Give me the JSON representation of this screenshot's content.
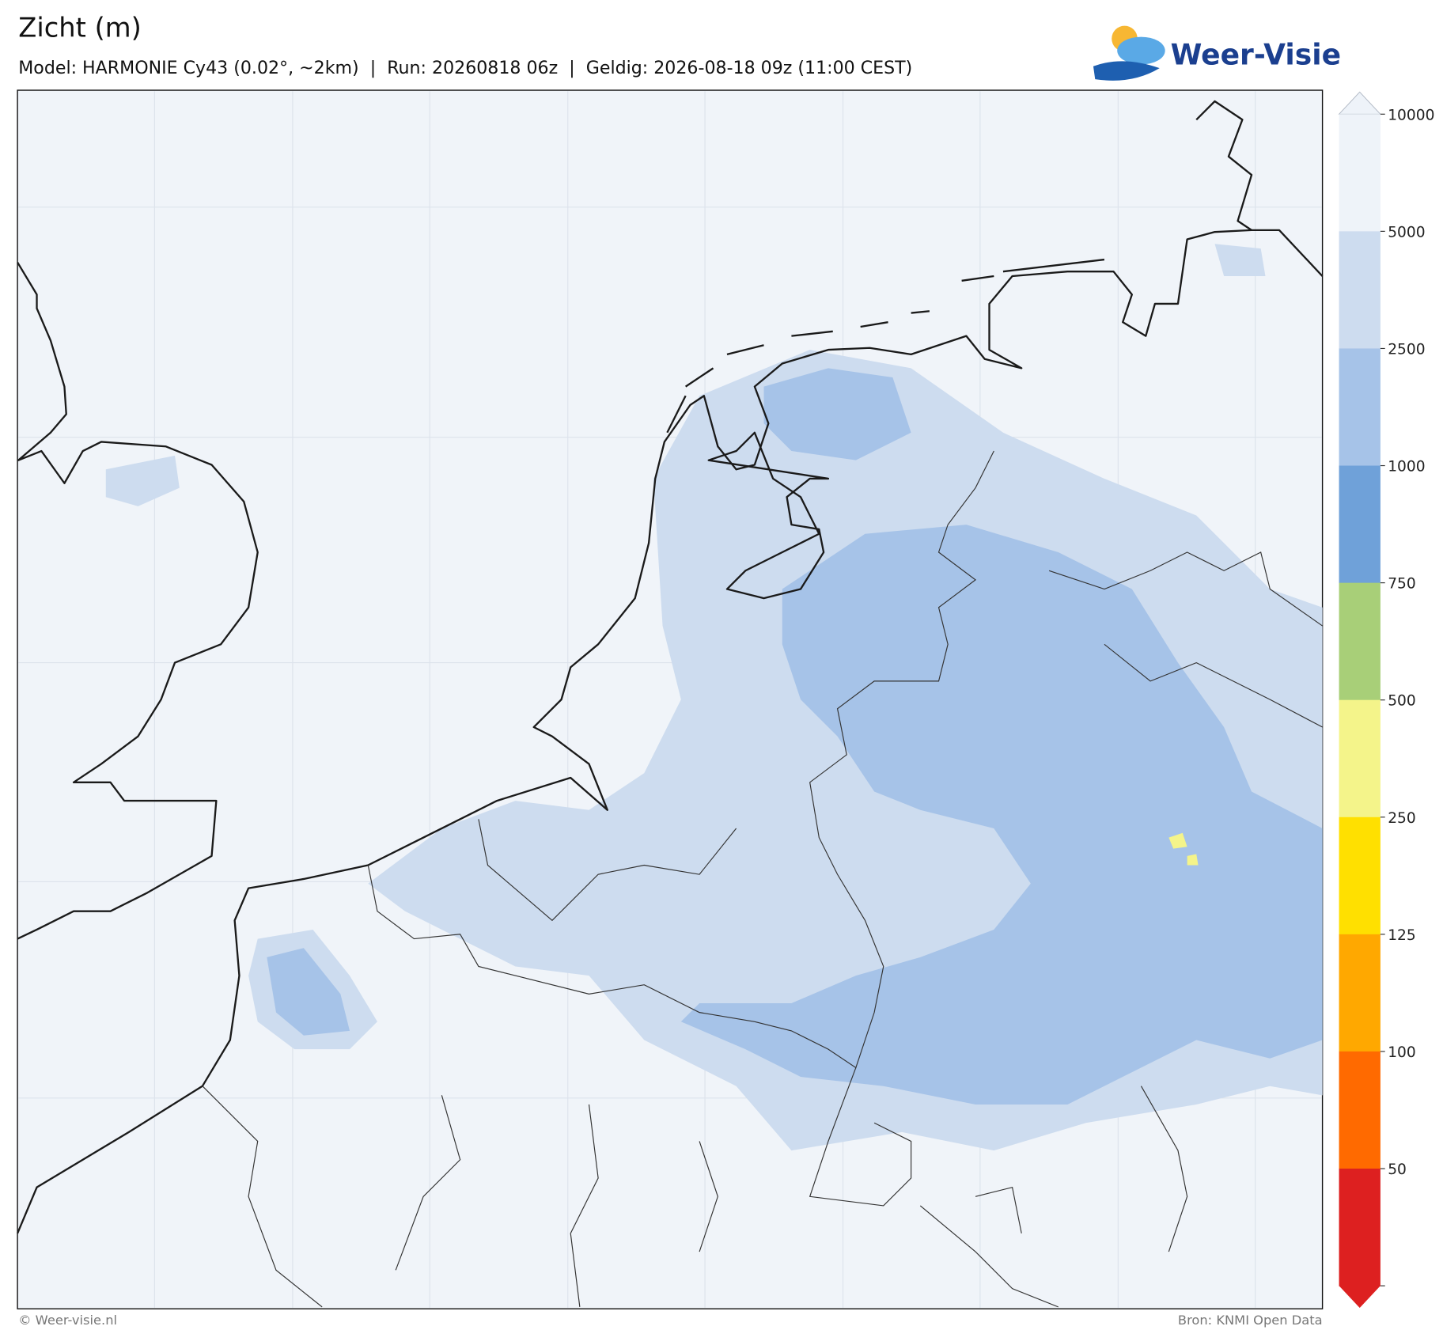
{
  "header": {
    "title": "Zicht (m)",
    "subtitle": "Model: HARMONIE Cy43 (0.02°, ~2km)  |  Run: 20260818 06z  |  Geldig: 2026-08-18 09z (11:00 CEST)",
    "logo": "Weer-Visie"
  },
  "colorbar": {
    "levels": [
      10000,
      5000,
      2500,
      1000,
      750,
      500,
      250,
      125,
      100,
      50
    ],
    "colors": [
      "#eef3f9",
      "#cddcef",
      "#a6c3e8",
      "#6fa1d9",
      "#a8cf78",
      "#f4f48a",
      "#ffe000",
      "#ffa800",
      "#ff6a00",
      "#dd2020"
    ]
  },
  "footer": {
    "left": "© Weer-visie.nl",
    "right": "Bron: KNMI Open Data"
  }
}
